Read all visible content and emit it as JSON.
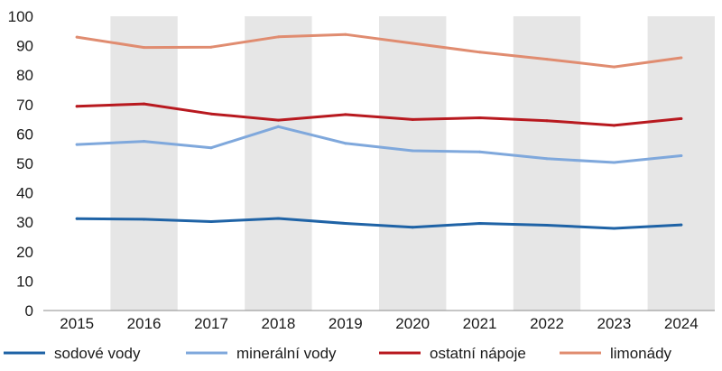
{
  "chart_data": {
    "type": "line",
    "x": [
      "2015",
      "2016",
      "2017",
      "2018",
      "2019",
      "2020",
      "2021",
      "2022",
      "2023",
      "2024"
    ],
    "ylim": [
      0,
      100
    ],
    "yticks": [
      "0",
      "10",
      "20",
      "30",
      "40",
      "50",
      "60",
      "70",
      "80",
      "90",
      "100"
    ],
    "shaded_columns": [
      "2016",
      "2018",
      "2020",
      "2022",
      "2024"
    ],
    "grid": false,
    "legend_position": "bottom",
    "series": [
      {
        "name": "sodové vody",
        "color": "#1f63a6",
        "values": [
          31.2,
          31.0,
          30.2,
          31.3,
          29.6,
          28.3,
          29.6,
          29.0,
          27.9,
          29.1
        ]
      },
      {
        "name": "minerální vody",
        "color": "#7fa8dc",
        "values": [
          56.4,
          57.5,
          55.3,
          62.5,
          56.8,
          54.3,
          53.9,
          51.6,
          50.3,
          52.6
        ]
      },
      {
        "name": "ostatní nápoje",
        "color": "#b8191f",
        "values": [
          69.4,
          70.2,
          66.8,
          64.7,
          66.6,
          64.9,
          65.5,
          64.5,
          62.9,
          65.2
        ]
      },
      {
        "name": "limonády",
        "color": "#e08c70",
        "values": [
          92.9,
          89.4,
          89.5,
          93.0,
          93.8,
          90.8,
          87.8,
          85.4,
          82.8,
          85.9
        ]
      }
    ]
  }
}
